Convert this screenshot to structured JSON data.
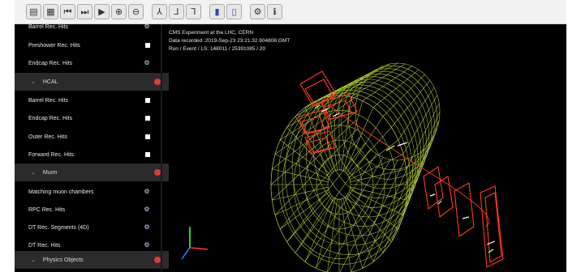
{
  "toolbar": {
    "buttons": [
      {
        "icon": "folder-icon",
        "glyph": "▤"
      },
      {
        "icon": "document-icon",
        "glyph": "▦"
      },
      {
        "icon": "previous-event-icon",
        "glyph": "⏮"
      },
      {
        "icon": "next-event-icon",
        "glyph": "⏭"
      },
      {
        "icon": "play-icon",
        "glyph": "▶"
      },
      {
        "icon": "zoom-in-icon",
        "glyph": "⊕"
      },
      {
        "icon": "zoom-out-icon",
        "glyph": "⊖"
      },
      {
        "icon": "view-xy-icon",
        "glyph": "⅄"
      },
      {
        "icon": "view-xz-icon",
        "glyph": "⅃"
      },
      {
        "icon": "view-yz-icon",
        "glyph": "⅂"
      },
      {
        "icon": "perspective-icon",
        "glyph": "▮"
      },
      {
        "icon": "orthographic-icon",
        "glyph": "▯"
      },
      {
        "icon": "settings-icon",
        "glyph": "⚙"
      },
      {
        "icon": "info-icon",
        "glyph": "ℹ"
      }
    ]
  },
  "sidebar": {
    "items": [
      {
        "type": "item",
        "label": "Barrel Rec. Hits",
        "indicator": "gear"
      },
      {
        "type": "item",
        "label": "Preshower Rec. Hits",
        "indicator": "square"
      },
      {
        "type": "item",
        "label": "Endcap Rec. Hits",
        "indicator": "gear"
      },
      {
        "type": "group",
        "label": "HCAL"
      },
      {
        "type": "item",
        "label": "Barrel Rec. Hits",
        "indicator": "square"
      },
      {
        "type": "item",
        "label": "Endcap Rec. Hits",
        "indicator": "square"
      },
      {
        "type": "item",
        "label": "Outer Rec. Hits",
        "indicator": "square"
      },
      {
        "type": "item",
        "label": "Forward Rec. Hits",
        "indicator": "square"
      },
      {
        "type": "group",
        "label": "Muon"
      },
      {
        "type": "item",
        "label": "Matching muon chambers",
        "indicator": "gear"
      },
      {
        "type": "item",
        "label": "RPC Rec. Hits",
        "indicator": "gear"
      },
      {
        "type": "item",
        "label": "DT Rec. Segments (4D)",
        "indicator": "gear"
      },
      {
        "type": "item",
        "label": "DT Rec. Hits",
        "indicator": "gear"
      },
      {
        "type": "group",
        "label": "Physics Objects"
      }
    ]
  },
  "event_info": {
    "experiment": "CMS Experiment at the LHC, CERN",
    "recorded": "Data recorded: 2019-Sep-23 23:21:32.904808 GMT",
    "run": "Run / Event / LS: 148011 / 25391085 / 20"
  },
  "colors": {
    "detector_mesh": "#c8e63a",
    "muon_chambers": "#ff3b1f",
    "background": "#000000",
    "group_dot": "#e03a3a"
  }
}
